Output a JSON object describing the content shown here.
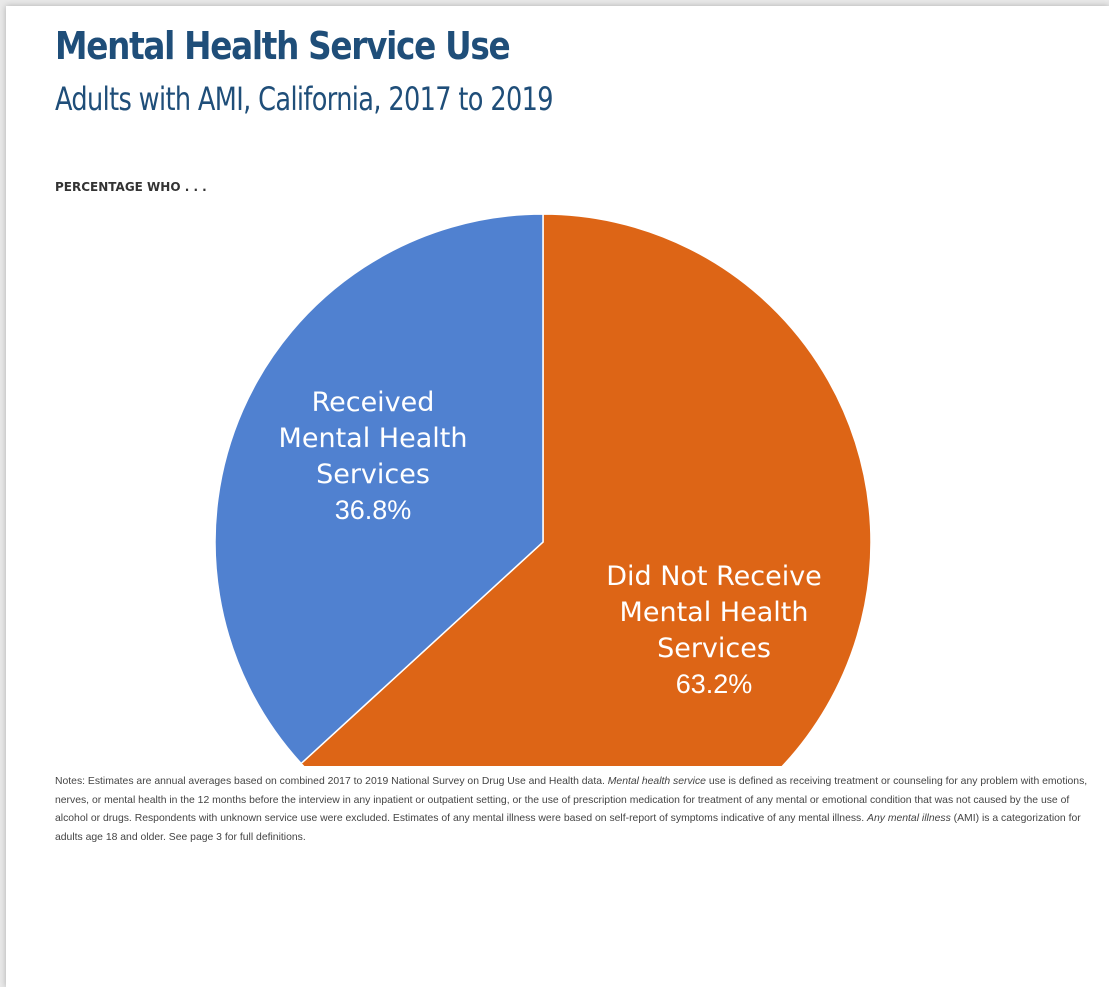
{
  "colors": {
    "title": "#1f4e79",
    "received": "#5081d0",
    "not_received": "#dd6516",
    "label_text": "#ffffff",
    "background": "#ffffff"
  },
  "header": {
    "title": "Mental Health Service Use",
    "subtitle": "Adults with AMI, California, 2017 to 2019",
    "caption": "PERCENTAGE WHO . . ."
  },
  "chart_data": {
    "type": "pie",
    "title": "Mental Health Service Use",
    "subtitle": "Adults with AMI, California, 2017 to 2019",
    "slices": [
      {
        "name": "Did Not Receive Mental Health Services",
        "label_lines": [
          "Did Not Receive",
          "Mental Health",
          "Services"
        ],
        "value": 63.2,
        "value_label": "63.2%",
        "color": "#dd6516"
      },
      {
        "name": "Received Mental Health Services",
        "label_lines": [
          "Received",
          "Mental Health",
          "Services"
        ],
        "value": 36.8,
        "value_label": "36.8%",
        "color": "#5081d0"
      }
    ],
    "start": "12 o'clock",
    "direction": "clockwise",
    "legend": "none"
  },
  "notes": {
    "t1": "Notes: Estimates are annual averages based on combined 2017 to 2019 National Survey on Drug Use and Health data. ",
    "t2": "Mental health service",
    "t3": " use is defined as receiving treatment or counseling for any problem with emotions, nerves, or mental health in the 12 months before the interview in any inpatient or outpatient setting, or the use of prescription medication for treatment of any mental or emotional condition that was not caused by the use of alcohol or drugs. Respondents with unknown service use were excluded. Estimates of any mental illness were based on self-report of symptoms indicative of any mental illness. ",
    "t4": "Any mental illness",
    "t5": " (AMI) is a categorization for adults age 18 and older. See page 3 for full definitions."
  }
}
